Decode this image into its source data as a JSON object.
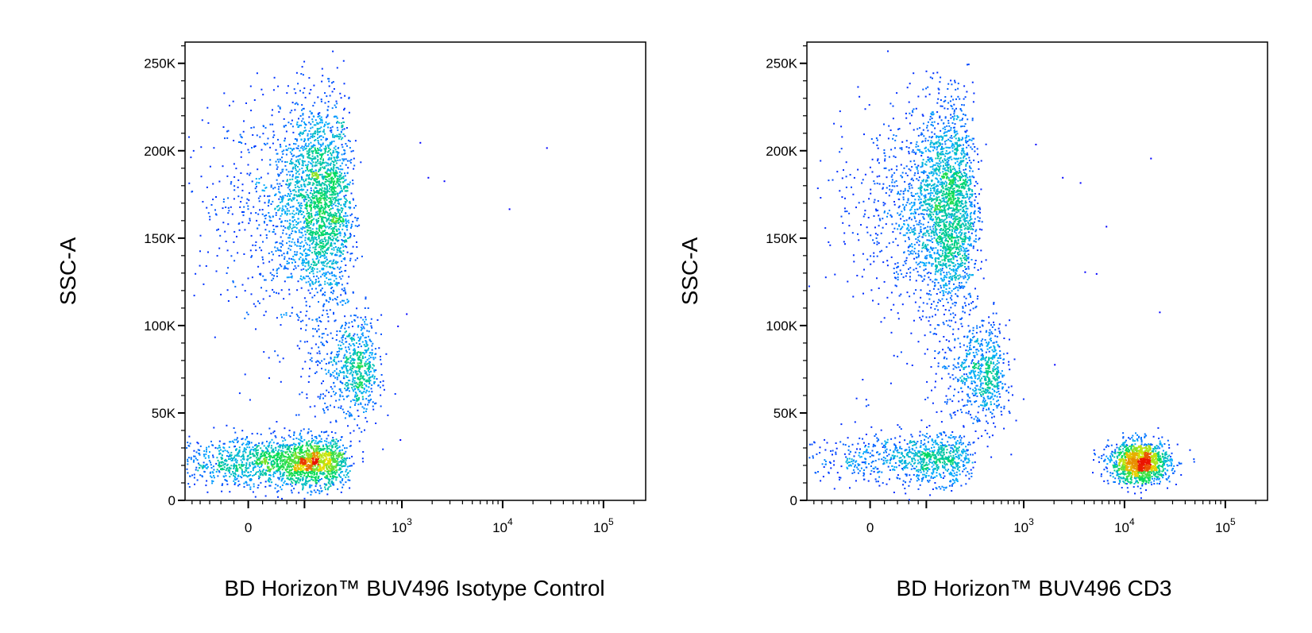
{
  "chart_data": [
    {
      "type": "scatter",
      "title": "",
      "xlabel": "BD Horizon™ BUV496 Isotype Control",
      "ylabel": "SSC-A",
      "x_scale": "biexponential",
      "y_scale": "linear",
      "ylim": [
        0,
        262144
      ],
      "y_ticks": [
        "0",
        "50K",
        "100K",
        "150K",
        "200K",
        "250K"
      ],
      "x_ticks": [
        "0",
        "10^3",
        "10^4",
        "10^5"
      ],
      "color_map": "density (blue→cyan→green→yellow→red)",
      "populations": [
        {
          "name": "",
          "x_center": 130,
          "y_center": 170000,
          "x_spread": 80,
          "y_spread": 30000,
          "count": 2600
        },
        {
          "name": "",
          "x_center": 330,
          "y_center": 75000,
          "x_spread": 120,
          "y_spread": 15000,
          "count": 700
        },
        {
          "name": "",
          "x_center": 80,
          "y_center": 22000,
          "x_spread": 90,
          "y_spread": 7000,
          "count": 2000
        }
      ],
      "outliers": [
        {
          "x": 1500,
          "y": 205000
        },
        {
          "x": 1800,
          "y": 185000
        },
        {
          "x": 2600,
          "y": 183000
        },
        {
          "x": 11500,
          "y": 167000
        },
        {
          "x": 27000,
          "y": 202000
        },
        {
          "x": 1100,
          "y": 107000
        },
        {
          "x": 900,
          "y": 100000
        },
        {
          "x": 950,
          "y": 35000
        }
      ]
    },
    {
      "type": "scatter",
      "title": "",
      "xlabel": "BD Horizon™ BUV496 CD3",
      "ylabel": "SSC-A",
      "x_scale": "biexponential",
      "y_scale": "linear",
      "ylim": [
        0,
        262144
      ],
      "y_ticks": [
        "0",
        "50K",
        "100K",
        "150K",
        "200K",
        "250K"
      ],
      "x_ticks": [
        "0",
        "10^3",
        "10^4",
        "10^5"
      ],
      "color_map": "density (blue→cyan→green→yellow→red)",
      "populations": [
        {
          "name": "",
          "x_center": 150,
          "y_center": 168000,
          "x_spread": 80,
          "y_spread": 30000,
          "count": 2600
        },
        {
          "name": "",
          "x_center": 380,
          "y_center": 72000,
          "x_spread": 140,
          "y_spread": 15000,
          "count": 700
        },
        {
          "name": "",
          "x_center": 90,
          "y_center": 24000,
          "x_spread": 90,
          "y_spread": 7000,
          "count": 900
        },
        {
          "name": "",
          "x_center": 14000,
          "y_center": 22000,
          "x_spread": 0.15,
          "y_spread": 6000,
          "count": 1300
        }
      ],
      "outliers": [
        {
          "x": 1300,
          "y": 204000
        },
        {
          "x": 2400,
          "y": 185000
        },
        {
          "x": 3600,
          "y": 182000
        },
        {
          "x": 6500,
          "y": 157000
        },
        {
          "x": 18000,
          "y": 196000
        },
        {
          "x": 4000,
          "y": 131000
        },
        {
          "x": 5200,
          "y": 130000
        },
        {
          "x": 2000,
          "y": 78000
        },
        {
          "x": 22000,
          "y": 108000
        }
      ]
    }
  ]
}
